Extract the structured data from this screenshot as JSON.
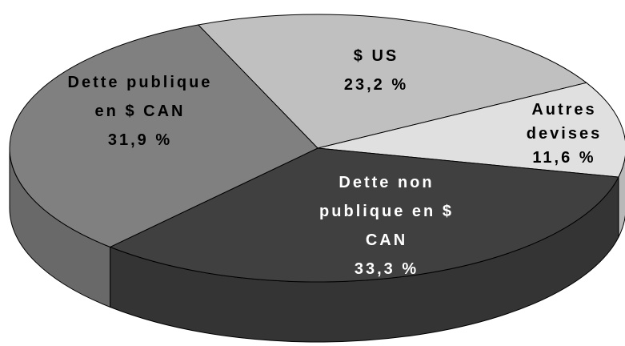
{
  "chart_data": {
    "type": "pie",
    "categories": [
      "$ US",
      "Autres devises",
      "Dette non publique en $ CAN",
      "Dette publique en $ CAN"
    ],
    "values": [
      23.2,
      11.6,
      33.3,
      31.9
    ],
    "value_labels": [
      "23,2 %",
      "11,6 %",
      "33,3 %",
      "31,9 %"
    ],
    "colors": [
      "#c0c0c0",
      "#e0e0e0",
      "#404040",
      "#808080"
    ]
  }
}
